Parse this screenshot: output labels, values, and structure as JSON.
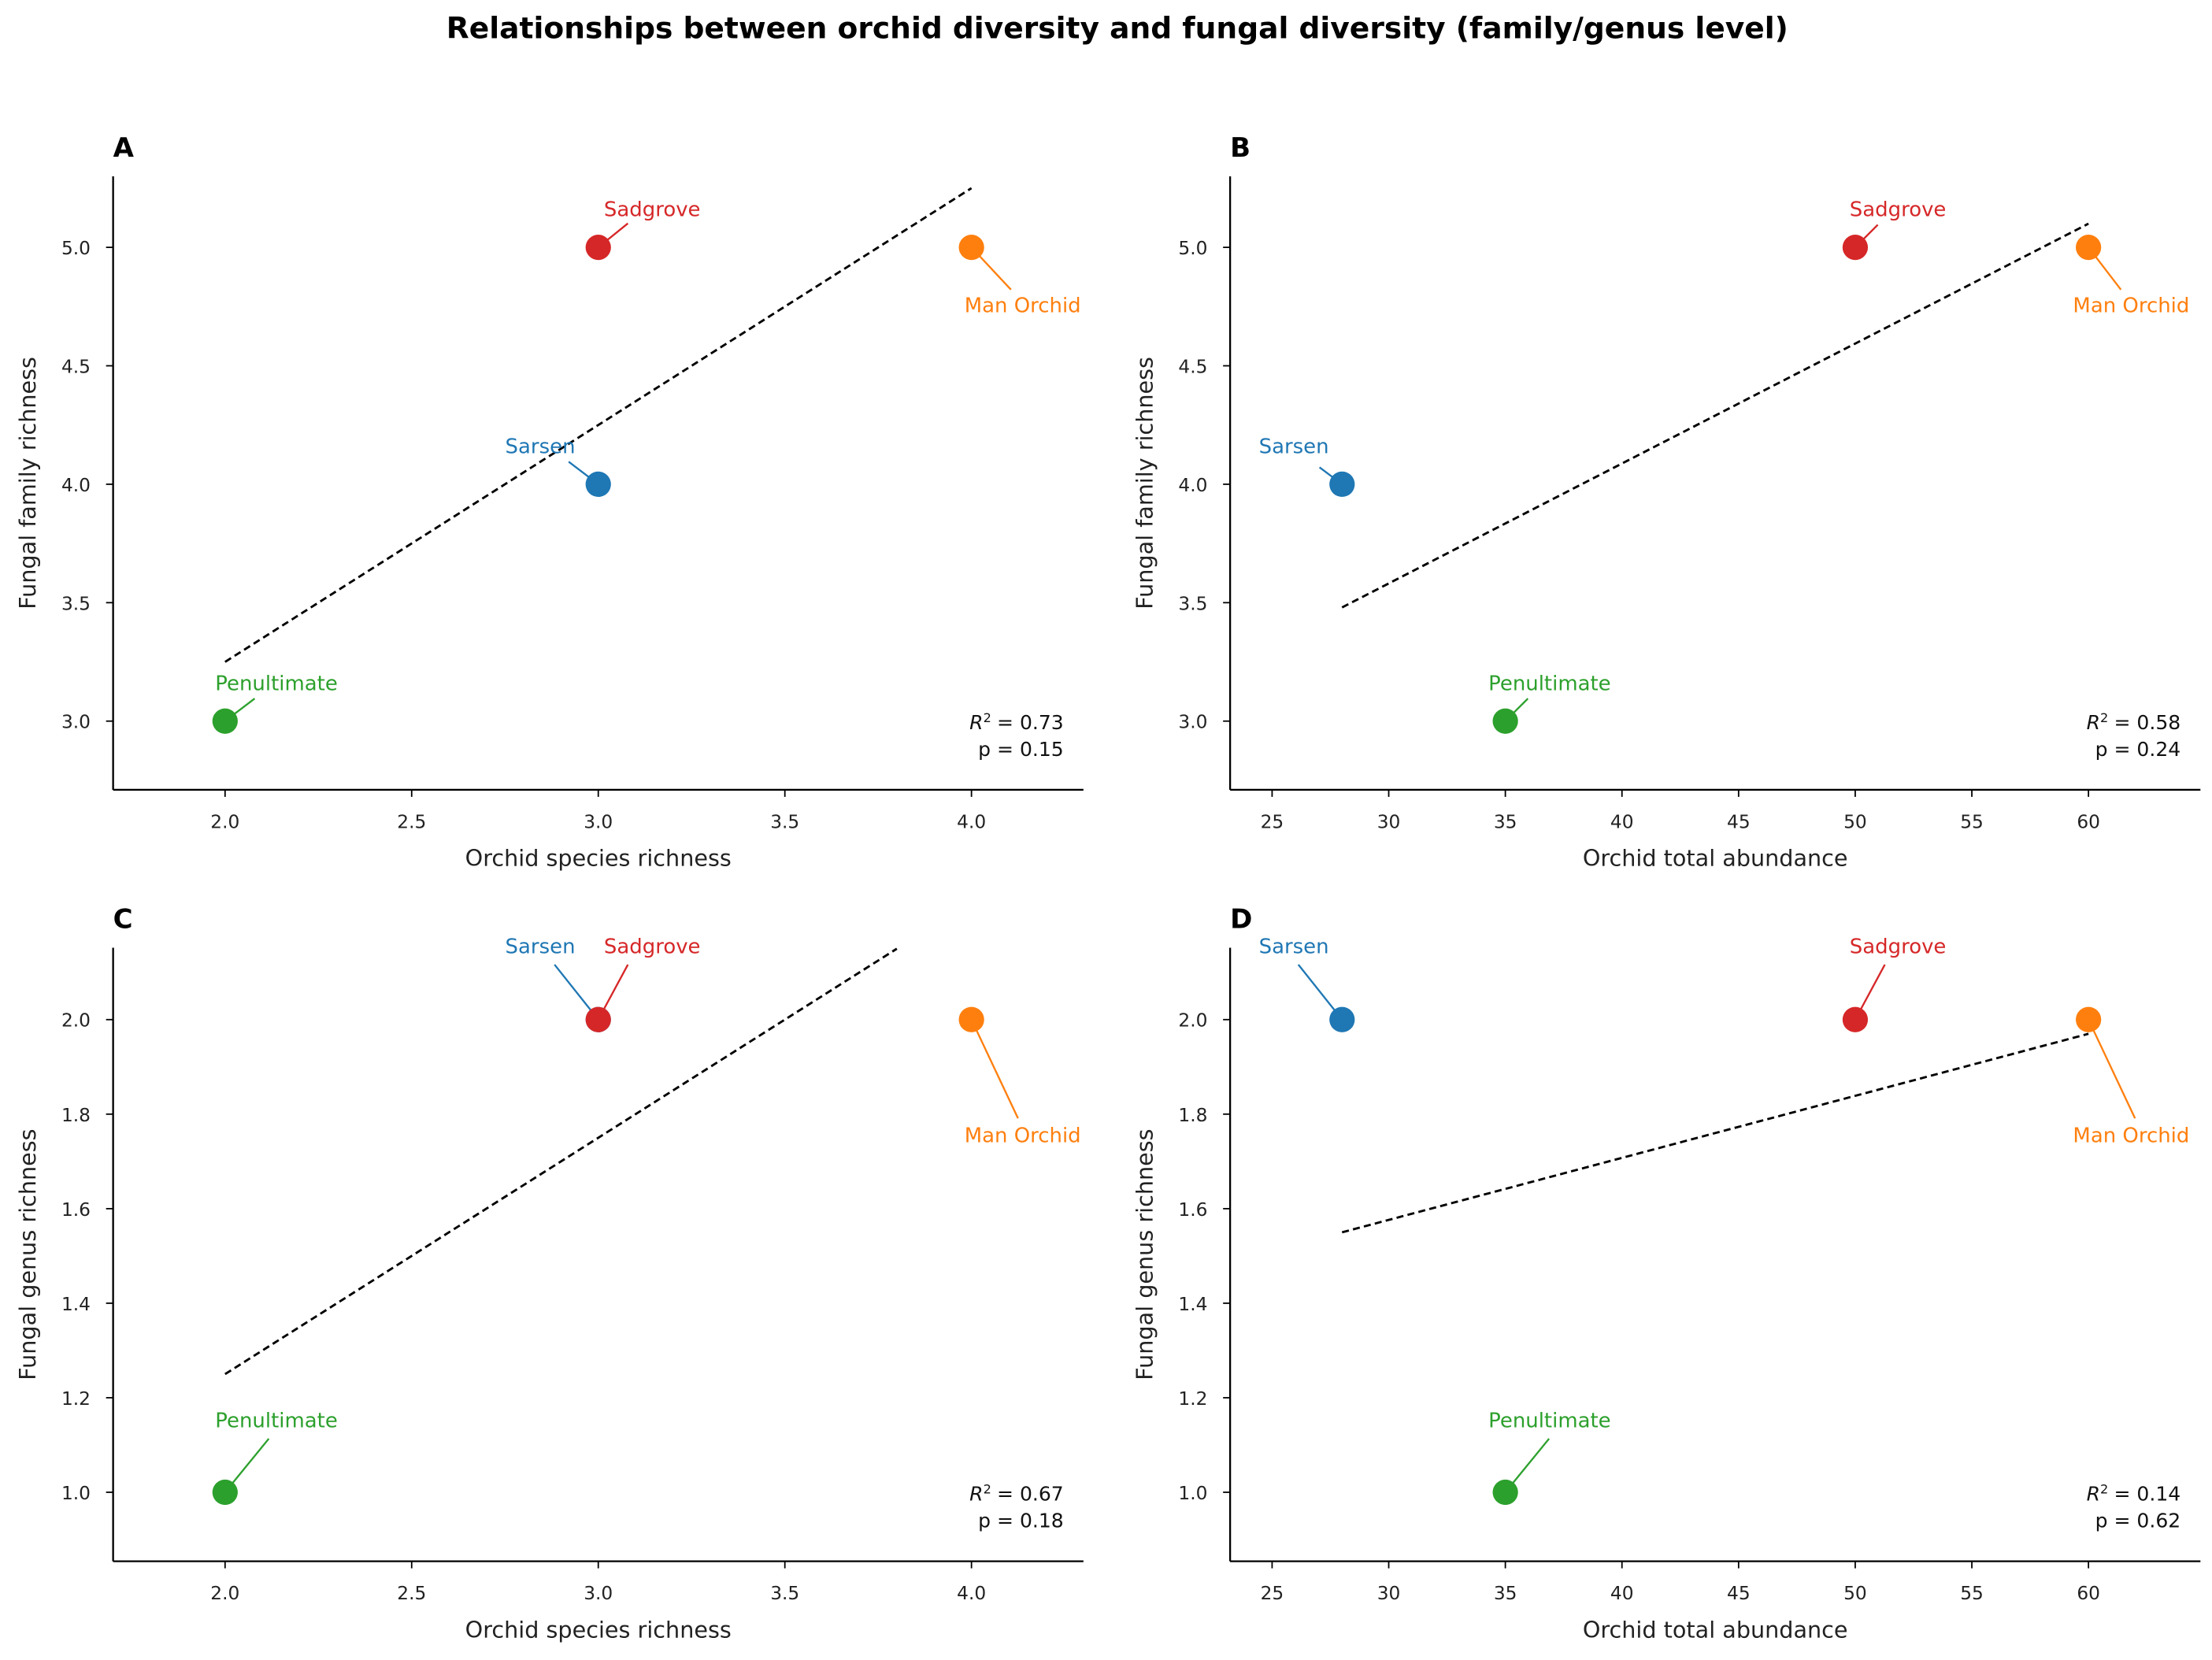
{
  "title": "Relationships between orchid diversity and fungal diversity (family/genus level)",
  "colors": {
    "Sarsen": "#1f77b4",
    "Sadgrove": "#d62728",
    "Man Orchid": "#ff7f0e",
    "Penultimate": "#2ca02c"
  },
  "chart_data": [
    {
      "panel": "A",
      "type": "scatter",
      "xlabel": "Orchid species richness",
      "ylabel": "Fungal family richness",
      "xlim": [
        1.7,
        4.3
      ],
      "ylim": [
        2.71,
        5.3
      ],
      "x_ticks": [
        2.0,
        2.5,
        3.0,
        3.5,
        4.0
      ],
      "x_tick_labels": [
        "2.0",
        "2.5",
        "3.0",
        "3.5",
        "4.0"
      ],
      "y_ticks": [
        3.0,
        3.5,
        4.0,
        4.5,
        5.0
      ],
      "y_tick_labels": [
        "3.0",
        "3.5",
        "4.0",
        "4.5",
        "5.0"
      ],
      "points": [
        {
          "name": "Sarsen",
          "x": 3,
          "y": 4
        },
        {
          "name": "Sadgrove",
          "x": 3,
          "y": 5
        },
        {
          "name": "Man Orchid",
          "x": 4,
          "y": 5
        },
        {
          "name": "Penultimate",
          "x": 2,
          "y": 3
        }
      ],
      "fit": {
        "x": [
          2,
          4
        ],
        "y": [
          3.25,
          5.25
        ]
      },
      "r2_label": "R",
      "r2_value": "= 0.73",
      "p_label": "p = 0.15"
    },
    {
      "panel": "B",
      "type": "scatter",
      "xlabel": "Orchid total abundance",
      "ylabel": "Fungal family richness",
      "xlim": [
        23.2,
        64.8
      ],
      "ylim": [
        2.71,
        5.3
      ],
      "x_ticks": [
        25,
        30,
        35,
        40,
        45,
        50,
        55,
        60
      ],
      "x_tick_labels": [
        "25",
        "30",
        "35",
        "40",
        "45",
        "50",
        "55",
        "60"
      ],
      "y_ticks": [
        3.0,
        3.5,
        4.0,
        4.5,
        5.0
      ],
      "y_tick_labels": [
        "3.0",
        "3.5",
        "4.0",
        "4.5",
        "5.0"
      ],
      "points": [
        {
          "name": "Sarsen",
          "x": 28,
          "y": 4
        },
        {
          "name": "Sadgrove",
          "x": 50,
          "y": 5
        },
        {
          "name": "Man Orchid",
          "x": 60,
          "y": 5
        },
        {
          "name": "Penultimate",
          "x": 35,
          "y": 3
        }
      ],
      "fit": {
        "x": [
          28,
          60
        ],
        "y": [
          3.48,
          5.1
        ]
      },
      "r2_label": "R",
      "r2_value": "= 0.58",
      "p_label": "p = 0.24"
    },
    {
      "panel": "C",
      "type": "scatter",
      "xlabel": "Orchid species richness",
      "ylabel": "Fungal genus richness",
      "xlim": [
        1.7,
        4.3
      ],
      "ylim": [
        0.854,
        2.152
      ],
      "x_ticks": [
        2.0,
        2.5,
        3.0,
        3.5,
        4.0
      ],
      "x_tick_labels": [
        "2.0",
        "2.5",
        "3.0",
        "3.5",
        "4.0"
      ],
      "y_ticks": [
        1.0,
        1.2,
        1.4,
        1.6,
        1.8,
        2.0
      ],
      "y_tick_labels": [
        "1.0",
        "1.2",
        "1.4",
        "1.6",
        "1.8",
        "2.0"
      ],
      "points": [
        {
          "name": "Sarsen",
          "x": 3,
          "y": 2
        },
        {
          "name": "Sadgrove",
          "x": 3,
          "y": 2
        },
        {
          "name": "Man Orchid",
          "x": 4,
          "y": 2
        },
        {
          "name": "Penultimate",
          "x": 2,
          "y": 1
        }
      ],
      "fit": {
        "x": [
          2,
          3.8
        ],
        "y": [
          1.25,
          2.15
        ]
      },
      "r2_label": "R",
      "r2_value": "= 0.67",
      "p_label": "p = 0.18"
    },
    {
      "panel": "D",
      "type": "scatter",
      "xlabel": "Orchid total abundance",
      "ylabel": "Fungal genus richness",
      "xlim": [
        23.2,
        64.8
      ],
      "ylim": [
        0.854,
        2.152
      ],
      "x_ticks": [
        25,
        30,
        35,
        40,
        45,
        50,
        55,
        60
      ],
      "x_tick_labels": [
        "25",
        "30",
        "35",
        "40",
        "45",
        "50",
        "55",
        "60"
      ],
      "y_ticks": [
        1.0,
        1.2,
        1.4,
        1.6,
        1.8,
        2.0
      ],
      "y_tick_labels": [
        "1.0",
        "1.2",
        "1.4",
        "1.6",
        "1.8",
        "2.0"
      ],
      "points": [
        {
          "name": "Sarsen",
          "x": 28,
          "y": 2
        },
        {
          "name": "Sadgrove",
          "x": 50,
          "y": 2
        },
        {
          "name": "Man Orchid",
          "x": 60,
          "y": 2
        },
        {
          "name": "Penultimate",
          "x": 35,
          "y": 1
        }
      ],
      "fit": {
        "x": [
          28,
          60
        ],
        "y": [
          1.55,
          1.97
        ]
      },
      "r2_label": "R",
      "r2_value": "= 0.14",
      "p_label": "p = 0.62"
    }
  ]
}
